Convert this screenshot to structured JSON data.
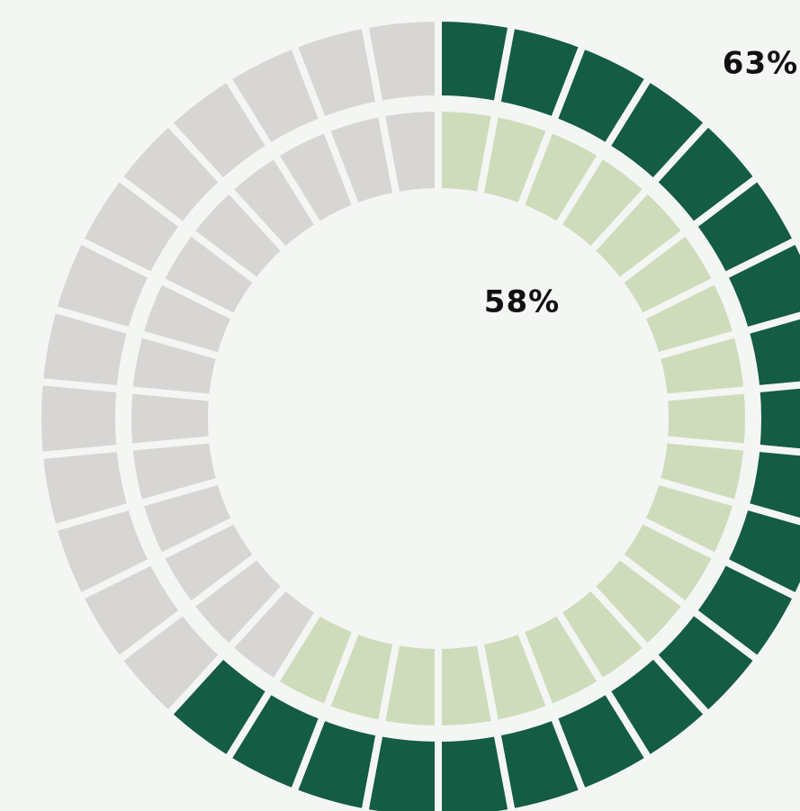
{
  "chart_data": {
    "type": "segmented-rings",
    "values": [
      63,
      58
    ],
    "value_labels": [
      "63%",
      "58%"
    ],
    "colors": [
      "#145c43",
      "#cfdcbc"
    ],
    "track_color": "#d8d6d4"
  }
}
